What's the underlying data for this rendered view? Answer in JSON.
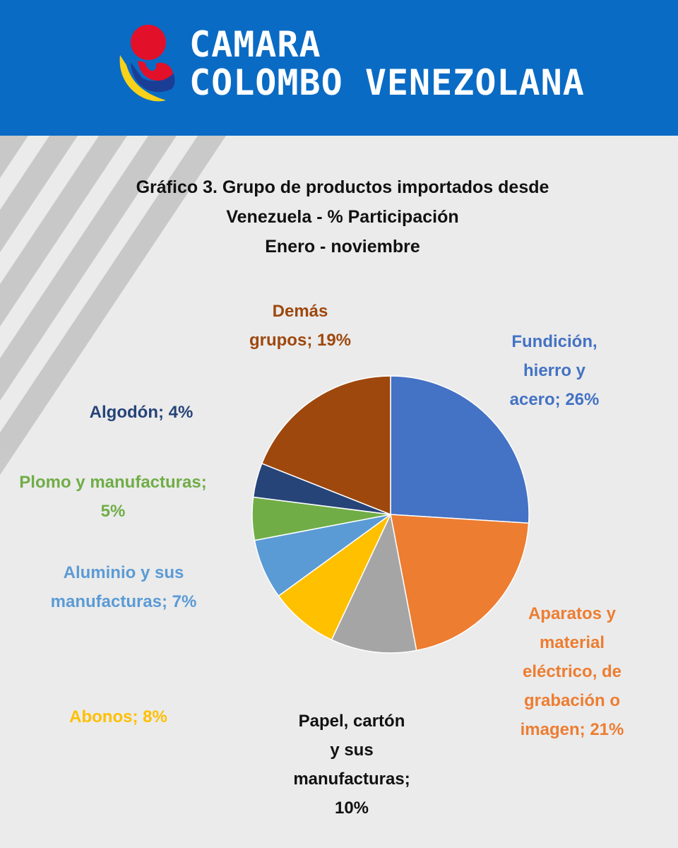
{
  "brand": {
    "line1": "CAMARA",
    "line2": "COLOMBO VENEZOLANA",
    "colors": {
      "header_bg": "#0a6bc4",
      "yellow": "#f7d11a",
      "blue": "#1a3e96",
      "red": "#e3102a"
    }
  },
  "chart_data": {
    "type": "pie",
    "title_lines": [
      "Gráfico 3. Grupo de productos importados desde",
      "Venezuela - % Participación",
      "Enero - noviembre"
    ],
    "unit": "%",
    "slices": [
      {
        "name": "Fundición, hierro y acero",
        "value": 26,
        "color": "#4472c4",
        "label_lines": [
          "Fundición,",
          "hierro y",
          "acero; 26%"
        ]
      },
      {
        "name": "Aparatos y material eléctrico, de grabación o imagen",
        "value": 21,
        "color": "#ed7d31",
        "label_lines": [
          "Aparatos y",
          "material",
          "eléctrico, de",
          "grabación o",
          "imagen; 21%"
        ]
      },
      {
        "name": "Papel, cartón y sus manufacturas",
        "value": 10,
        "color": "#a5a5a5",
        "label_lines": [
          "Papel, cartón",
          "y sus",
          "manufacturas;",
          "10%"
        ]
      },
      {
        "name": "Abonos",
        "value": 8,
        "color": "#ffc000",
        "label_lines": [
          "Abonos; 8%"
        ]
      },
      {
        "name": "Aluminio y sus manufacturas",
        "value": 7,
        "color": "#5b9bd5",
        "label_lines": [
          "Aluminio y sus",
          "manufacturas; 7%"
        ]
      },
      {
        "name": "Plomo y manufacturas",
        "value": 5,
        "color": "#70ad47",
        "label_lines": [
          "Plomo y manufacturas;",
          "5%"
        ]
      },
      {
        "name": "Algodón",
        "value": 4,
        "color": "#264478",
        "label_lines": [
          "Algodón; 4%"
        ]
      },
      {
        "name": "Demás grupos",
        "value": 19,
        "color": "#9e480e",
        "label_lines": [
          "Demás",
          "grupos; 19%"
        ]
      }
    ]
  }
}
